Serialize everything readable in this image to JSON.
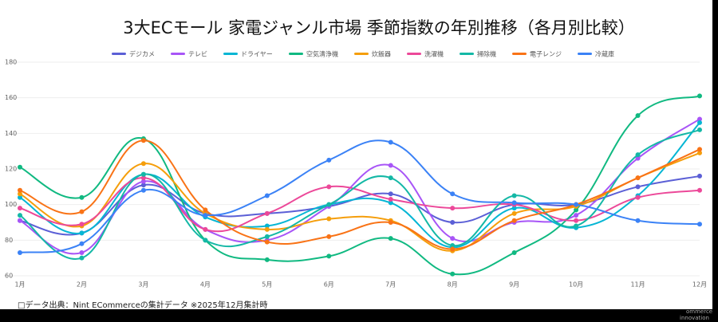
{
  "chart_data": {
    "type": "line",
    "title": "3大ECモール 家電ジャンル市場 季節指数の年別推移（各月別比較）",
    "categories": [
      "1月",
      "2月",
      "3月",
      "4月",
      "5月",
      "6月",
      "7月",
      "8月",
      "9月",
      "10月",
      "11月",
      "12月"
    ],
    "series": [
      {
        "name": "デジカメ",
        "color": "#5b5fd6",
        "values": [
          91,
          84,
          111,
          95,
          95,
          99,
          106,
          90,
          100,
          100,
          110,
          116
        ]
      },
      {
        "name": "テレビ",
        "color": "#a855f7",
        "values": [
          91,
          73,
          113,
          86,
          80,
          99,
          122,
          81,
          90,
          94,
          126,
          148
        ]
      },
      {
        "name": "ドライヤー",
        "color": "#06b6d4",
        "values": [
          104,
          84,
          117,
          93,
          88,
          100,
          101,
          76,
          98,
          87,
          105,
          146
        ]
      },
      {
        "name": "空気清浄機",
        "color": "#10b981",
        "values": [
          121,
          104,
          137,
          80,
          69,
          71,
          81,
          61,
          73,
          97,
          150,
          161
        ]
      },
      {
        "name": "炊飯器",
        "color": "#f59e0b",
        "values": [
          106,
          88,
          123,
          95,
          86,
          92,
          91,
          74,
          95,
          99,
          115,
          129
        ]
      },
      {
        "name": "洗濯機",
        "color": "#ec4899",
        "values": [
          98,
          89,
          115,
          86,
          95,
          110,
          103,
          98,
          100,
          91,
          104,
          108
        ]
      },
      {
        "name": "掃除機",
        "color": "#14b8a6",
        "values": [
          94,
          70,
          117,
          80,
          82,
          100,
          115,
          77,
          105,
          88,
          128,
          142
        ]
      },
      {
        "name": "電子レンジ",
        "color": "#f97316",
        "values": [
          108,
          96,
          136,
          97,
          79,
          82,
          90,
          75,
          91,
          100,
          115,
          131
        ]
      },
      {
        "name": "冷蔵庫",
        "color": "#3b82f6",
        "values": [
          73,
          78,
          108,
          94,
          105,
          125,
          135,
          106,
          101,
          100,
          91,
          89
        ]
      }
    ],
    "ylim": [
      60,
      180
    ],
    "yticks": [
      60,
      80,
      100,
      120,
      140,
      160,
      180
    ],
    "grid": true,
    "legend": "top",
    "footnote": "□データ出典：Nint ECommerceの集計データ ※2025年12月集計時",
    "logo": [
      "ommerce",
      "innovation"
    ]
  }
}
